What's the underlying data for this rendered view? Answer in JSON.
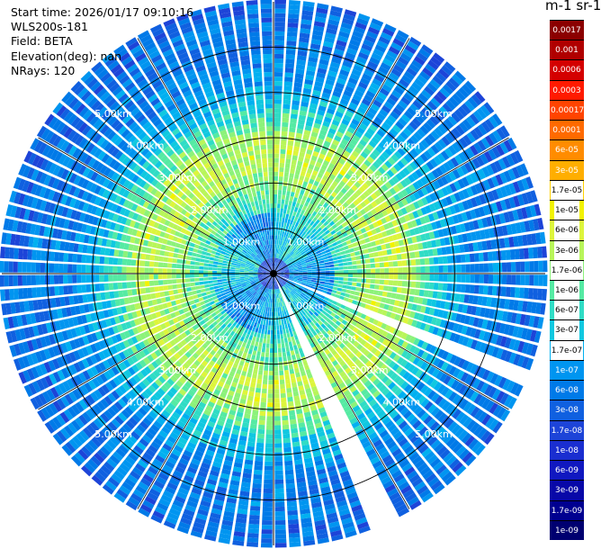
{
  "info": {
    "start_time": "Start time: 2026/01/17 09:10:16",
    "device": "WLS200s-181",
    "field": "Field: BETA",
    "elevation": "Elevation(deg): nan",
    "nrays": "NRays: 120"
  },
  "colorbar": {
    "title": "m-1 sr-1",
    "labels": [
      "0.0017",
      "0.001",
      "0.0006",
      "0.0003",
      "0.00017",
      "0.0001",
      "6e-05",
      "3e-05",
      "1.7e-05",
      "1e-05",
      "6e-06",
      "3e-06",
      "1.7e-06",
      "1e-06",
      "6e-07",
      "3e-07",
      "1.7e-07",
      "1e-07",
      "6e-08",
      "3e-08",
      "1.7e-08",
      "1e-08",
      "6e-09",
      "3e-09",
      "1.7e-09",
      "1e-09"
    ],
    "colors": [
      "#8b0000",
      "#b00000",
      "#d40000",
      "#ff1a00",
      "#ff4400",
      "#ff6a00",
      "#ff8c00",
      "#ffae00",
      "#ffd000",
      "#f2f200",
      "#ddf53c",
      "#b8f55a",
      "#8cf27a",
      "#55eaa3",
      "#30dcc5",
      "#10c8e0",
      "#00b0f0",
      "#0095f0",
      "#007ae8",
      "#1060e0",
      "#1d44d8",
      "#1a2ed0",
      "#1018c0",
      "#0808a8",
      "#000090",
      "#000070"
    ]
  },
  "chart_data": {
    "type": "ppi",
    "title": "",
    "range_rings_km": [
      1.0,
      2.0,
      3.0,
      4.0,
      5.0
    ],
    "ring_labels": [
      "1.00km",
      "2.00km",
      "3.00km",
      "4.00km",
      "5.00km"
    ],
    "max_range_km": 6.0,
    "nrays": 120,
    "spokes_deg": [
      0,
      30,
      60,
      90,
      120,
      150,
      180,
      210,
      240,
      270,
      300,
      330
    ],
    "missing_sectors_deg": [
      [
        111,
        113.5
      ],
      [
        154,
        157.5
      ]
    ],
    "field": "BETA",
    "units": "m-1 sr-1"
  }
}
